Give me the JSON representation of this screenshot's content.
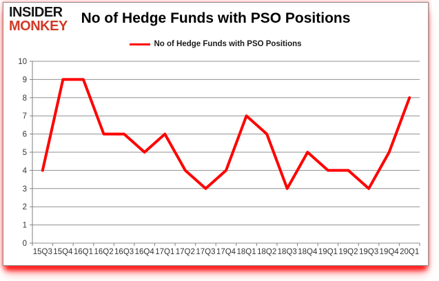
{
  "logo": {
    "line1": "INSIDER",
    "line2": "MONKEY",
    "color_line1": "#151515",
    "color_line2": "#d13a27"
  },
  "title": "No of Hedge Funds with PSO Positions",
  "legend": {
    "label": "No of Hedge Funds with PSO Positions",
    "swatch_color": "#ff0000"
  },
  "chart_data": {
    "type": "line",
    "title": "No of Hedge Funds with PSO Positions",
    "categories": [
      "15Q3",
      "15Q4",
      "16Q1",
      "16Q2",
      "16Q3",
      "16Q4",
      "17Q1",
      "17Q2",
      "17Q3",
      "17Q4",
      "18Q1",
      "18Q2",
      "18Q3",
      "18Q4",
      "19Q1",
      "19Q2",
      "19Q3",
      "19Q4",
      "20Q1"
    ],
    "series": [
      {
        "name": "No of Hedge Funds with PSO Positions",
        "color": "#ff0000",
        "values": [
          4,
          9,
          9,
          6,
          6,
          5,
          6,
          4,
          3,
          4,
          7,
          6,
          3,
          5,
          4,
          4,
          3,
          5,
          8
        ]
      }
    ],
    "ylim": [
      0,
      10
    ],
    "yticks": [
      0,
      1,
      2,
      3,
      4,
      5,
      6,
      7,
      8,
      9,
      10
    ],
    "xlabel": "",
    "ylabel": "",
    "grid": true,
    "legend_position": "top-center"
  },
  "colors": {
    "line": "#ff0000",
    "grid": "#8f8f8f",
    "axis": "#7f7f7f",
    "tick_label": "#333333",
    "card_border": "#8c8c8c",
    "shadow": "#ff0000"
  }
}
